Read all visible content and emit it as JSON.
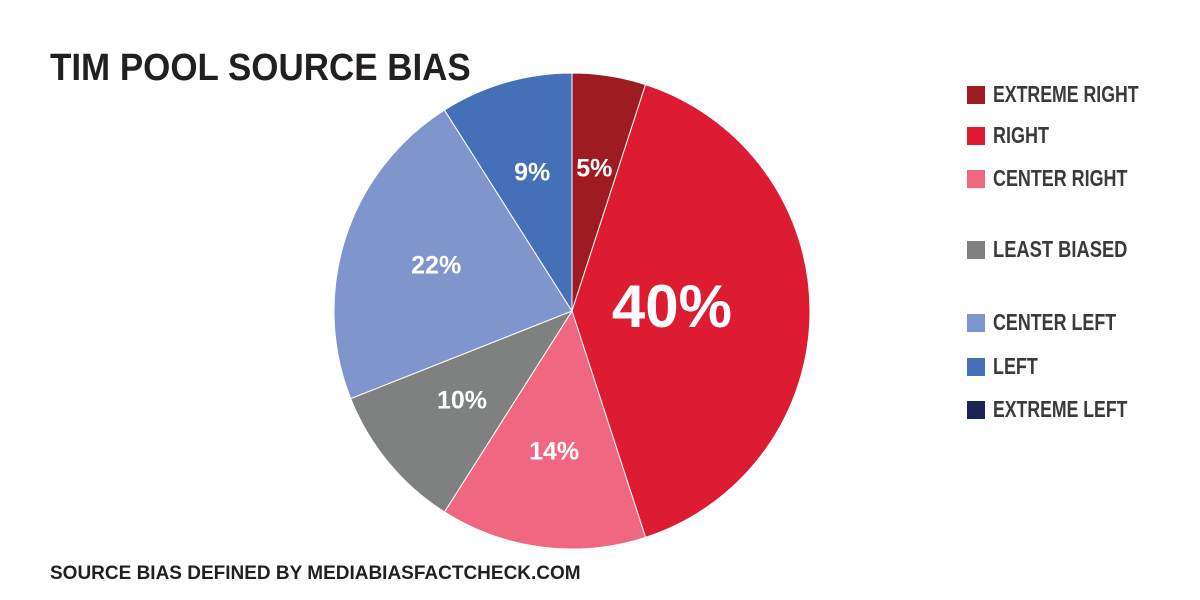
{
  "chart_data": {
    "type": "pie",
    "title": "TIM POOL SOURCE BIAS",
    "categories": [
      "EXTREME RIGHT",
      "RIGHT",
      "CENTER RIGHT",
      "LEAST BIASED",
      "CENTER LEFT",
      "LEFT",
      "EXTREME LEFT"
    ],
    "values": [
      5,
      40,
      14,
      10,
      22,
      9,
      0
    ],
    "value_labels": [
      "5%",
      "40%",
      "14%",
      "10%",
      "22%",
      "9%",
      null
    ],
    "colors": [
      "#9e1b22",
      "#dd1c33",
      "#f06782",
      "#7f8080",
      "#7f95cc",
      "#4570b8",
      "#1b2456"
    ],
    "legend": "right",
    "footnote": "SOURCE BIAS DEFINED BY MEDIABIASFACTCHECK.COM"
  }
}
